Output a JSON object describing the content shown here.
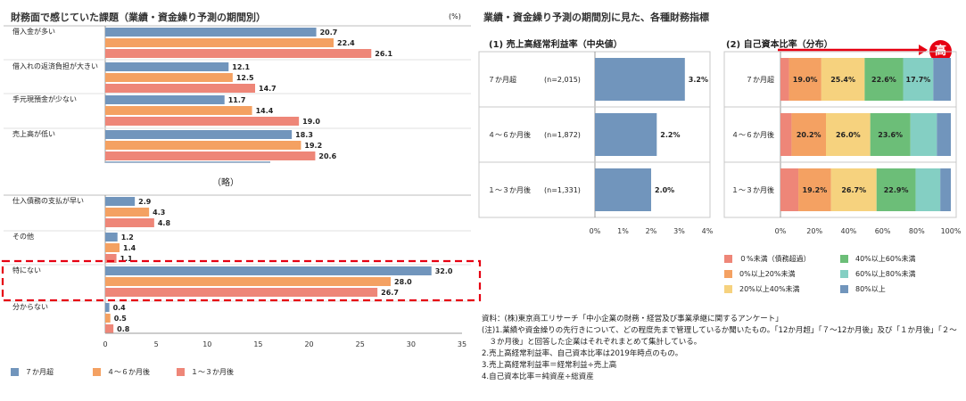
{
  "left": {
    "title": "財務面で感じていた課題（業績・資金繰り予測の期間別）",
    "unit": "(%)",
    "omitted": "（略）",
    "series": [
      {
        "name": "７か月超",
        "color": "#7195BC"
      },
      {
        "name": "４～６か月後",
        "color": "#F4A162"
      },
      {
        "name": "１～３か月後",
        "color": "#EE8678"
      }
    ]
  },
  "right": {
    "title": "業績・資金繰り予測の期間別に見た、各種財務指標",
    "sub1_title": "(1) 売上高経常利益率（中央値）",
    "sub2_title": "(2) 自己資本比率（分布）",
    "high_label": "高",
    "legend": [
      {
        "name": "０%未満（債務超過）",
        "color": "#EE8678"
      },
      {
        "name": "40%以上60%未満",
        "color": "#6CBE78"
      },
      {
        "name": "0%以上20%未満",
        "color": "#F4A162"
      },
      {
        "name": "60%以上80%未満",
        "color": "#84CFC3"
      },
      {
        "name": "20%以上40%未満",
        "color": "#F6D27E"
      },
      {
        "name": "80%以上",
        "color": "#7195BC"
      }
    ],
    "notes": [
      "資料：(株)東京商工リサーチ「中小企業の財務・経営及び事業承継に関するアンケート」",
      "(注)1.業績や資金繰りの先行きについて、どの程度先まで管理しているか聞いたもの。「12か月超」「７～12か月後」及び「１か月後」「２～",
      "　３か月後」と回答した企業はそれぞれまとめて集計している。",
      "2.売上高経常利益率、自己資本比率は2019年時点のもの。",
      "3.売上高経常利益率＝経常利益÷売上高",
      "4.自己資本比率＝純資産÷総資産"
    ]
  },
  "chart_data": [
    {
      "type": "bar",
      "orientation": "horizontal",
      "title": "財務面で感じていた課題（業績・資金繰り予測の期間別）",
      "ylabel": "(%)",
      "categories": [
        "借入金が多い",
        "借入れの返済負担が大きい",
        "手元現預金が少ない",
        "売上高が低い",
        "仕入債務の支払が早い",
        "その他",
        "特にない",
        "分からない"
      ],
      "series": [
        {
          "name": "７か月超",
          "values": [
            20.7,
            12.1,
            11.7,
            18.3,
            2.9,
            1.2,
            32.0,
            0.4
          ]
        },
        {
          "name": "４～６か月後",
          "values": [
            22.4,
            12.5,
            14.4,
            19.2,
            4.3,
            1.4,
            28.0,
            0.5
          ]
        },
        {
          "name": "１～３か月後",
          "values": [
            26.1,
            14.7,
            19.0,
            20.6,
            4.8,
            1.1,
            26.7,
            0.8
          ]
        }
      ],
      "xlim": [
        0,
        35
      ],
      "xticks": [
        "0",
        "5",
        "10",
        "15",
        "20",
        "25",
        "30",
        "35"
      ],
      "legend": "bottom"
    },
    {
      "type": "bar",
      "orientation": "horizontal",
      "title": "(1) 売上高経常利益率（中央値）",
      "categories": [
        "７か月超",
        "４～６か月後",
        "１～３か月後"
      ],
      "n_labels": [
        "(n=2,015)",
        "(n=1,872)",
        "(n=1,331)"
      ],
      "values": [
        3.2,
        2.2,
        2.0
      ],
      "value_labels": [
        "3.2%",
        "2.2%",
        "2.0%"
      ],
      "xlim": [
        0,
        4
      ],
      "xticks": [
        "0%",
        "1%",
        "2%",
        "3%",
        "4%"
      ]
    },
    {
      "type": "bar",
      "orientation": "horizontal",
      "stacked": true,
      "title": "(2) 自己資本比率（分布）",
      "categories": [
        "７か月超",
        "４～６か月後",
        "１～３か月後"
      ],
      "series": [
        {
          "name": "０%未満（債務超過）",
          "values": [
            5.0,
            6.5,
            10.5
          ]
        },
        {
          "name": "0%以上20%未満",
          "values": [
            19.0,
            20.2,
            19.2
          ]
        },
        {
          "name": "20%以上40%未満",
          "values": [
            25.4,
            26.0,
            26.7
          ]
        },
        {
          "name": "40%以上60%未満",
          "values": [
            22.6,
            23.6,
            22.9
          ]
        },
        {
          "name": "60%以上80%未満",
          "values": [
            17.7,
            15.5,
            14.5
          ]
        },
        {
          "name": "80%以上",
          "values": [
            10.3,
            8.2,
            6.2
          ]
        }
      ],
      "value_labels": [
        [
          "",
          "19.0%",
          "25.4%",
          "22.6%",
          "17.7%",
          ""
        ],
        [
          "",
          "20.2%",
          "26.0%",
          "23.6%",
          "",
          ""
        ],
        [
          "",
          "19.2%",
          "26.7%",
          "22.9%",
          "",
          ""
        ]
      ],
      "xlim": [
        0,
        100
      ],
      "xticks": [
        "0%",
        "20%",
        "40%",
        "60%",
        "80%",
        "100%"
      ],
      "legend": "bottom"
    }
  ]
}
